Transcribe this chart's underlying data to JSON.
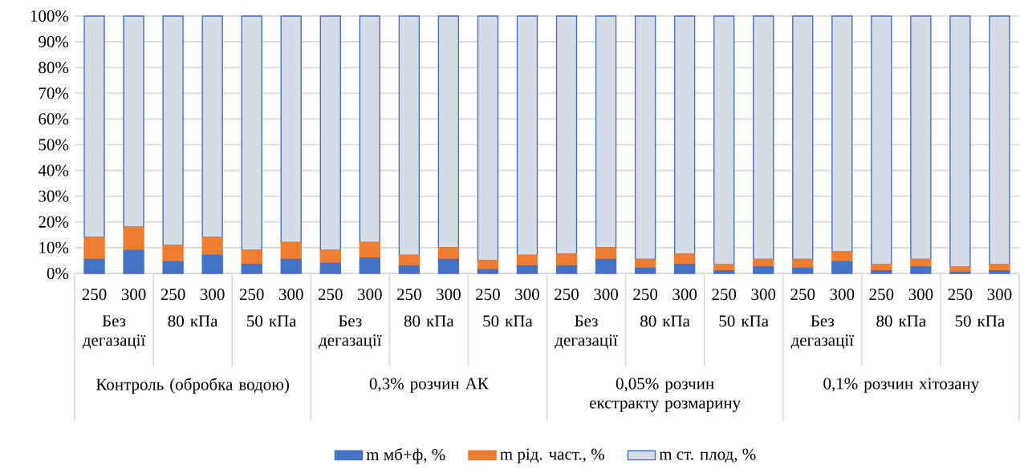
{
  "chart_data": {
    "type": "bar",
    "stacked": true,
    "categories": [
      "250",
      "300",
      "250",
      "300",
      "250",
      "300",
      "250",
      "300",
      "250",
      "300",
      "250",
      "300",
      "250",
      "300",
      "250",
      "300",
      "250",
      "300",
      "250",
      "300",
      "250",
      "300",
      "250",
      "300"
    ],
    "series": [
      {
        "name": "m мб+ф, %",
        "color": "#4472c4",
        "values": [
          5.5,
          9,
          4.5,
          7,
          3.5,
          5.5,
          4,
          6,
          3,
          5.5,
          1.5,
          3,
          3,
          5.5,
          2,
          3.5,
          1,
          2.5,
          2,
          4.5,
          1,
          2.5,
          0.5,
          1
        ]
      },
      {
        "name": "m рід. част., %",
        "color": "#ed7d31",
        "values": [
          8.5,
          9,
          6.5,
          7,
          5.5,
          6.5,
          5,
          6,
          4,
          4.5,
          3.5,
          4,
          4.5,
          4.5,
          3.5,
          4,
          2.5,
          3,
          3.5,
          4,
          2.5,
          3,
          2,
          2.5
        ]
      },
      {
        "name": "m ст. плод, %",
        "color": "#d6dce5",
        "values": [
          86,
          82,
          89,
          86,
          91,
          88,
          91,
          88,
          93,
          90,
          95,
          93,
          92.5,
          90,
          94.5,
          92.5,
          96.5,
          94.5,
          94.5,
          91.5,
          96.5,
          94.5,
          97.5,
          96.5
        ]
      }
    ],
    "ylim": [
      0,
      100
    ],
    "yticks": [
      {
        "value": 0,
        "label": "0%"
      },
      {
        "value": 10,
        "label": "10%"
      },
      {
        "value": 20,
        "label": "20%"
      },
      {
        "value": 30,
        "label": "30%"
      },
      {
        "value": 40,
        "label": "40%"
      },
      {
        "value": 50,
        "label": "50%"
      },
      {
        "value": 60,
        "label": "60%"
      },
      {
        "value": 70,
        "label": "70%"
      },
      {
        "value": 80,
        "label": "80%"
      },
      {
        "value": 90,
        "label": "90%"
      },
      {
        "value": 100,
        "label": "100%"
      }
    ],
    "grid": "y",
    "legend": "bottom",
    "annotations": [
      "Без дегазації",
      "80 кПа",
      "50 кПа",
      "Без дегазації",
      "80 кПа",
      "50 кПа",
      "Без дегазації",
      "80 кПа",
      "50 кПа",
      "Без дегазації",
      "80 кПа",
      "50 кПа",
      "Контроль (обробка водою)",
      "0,3% розчин АК",
      "0,05% розчин екстракту розмарину",
      "0,1% розчин хітозану"
    ]
  }
}
